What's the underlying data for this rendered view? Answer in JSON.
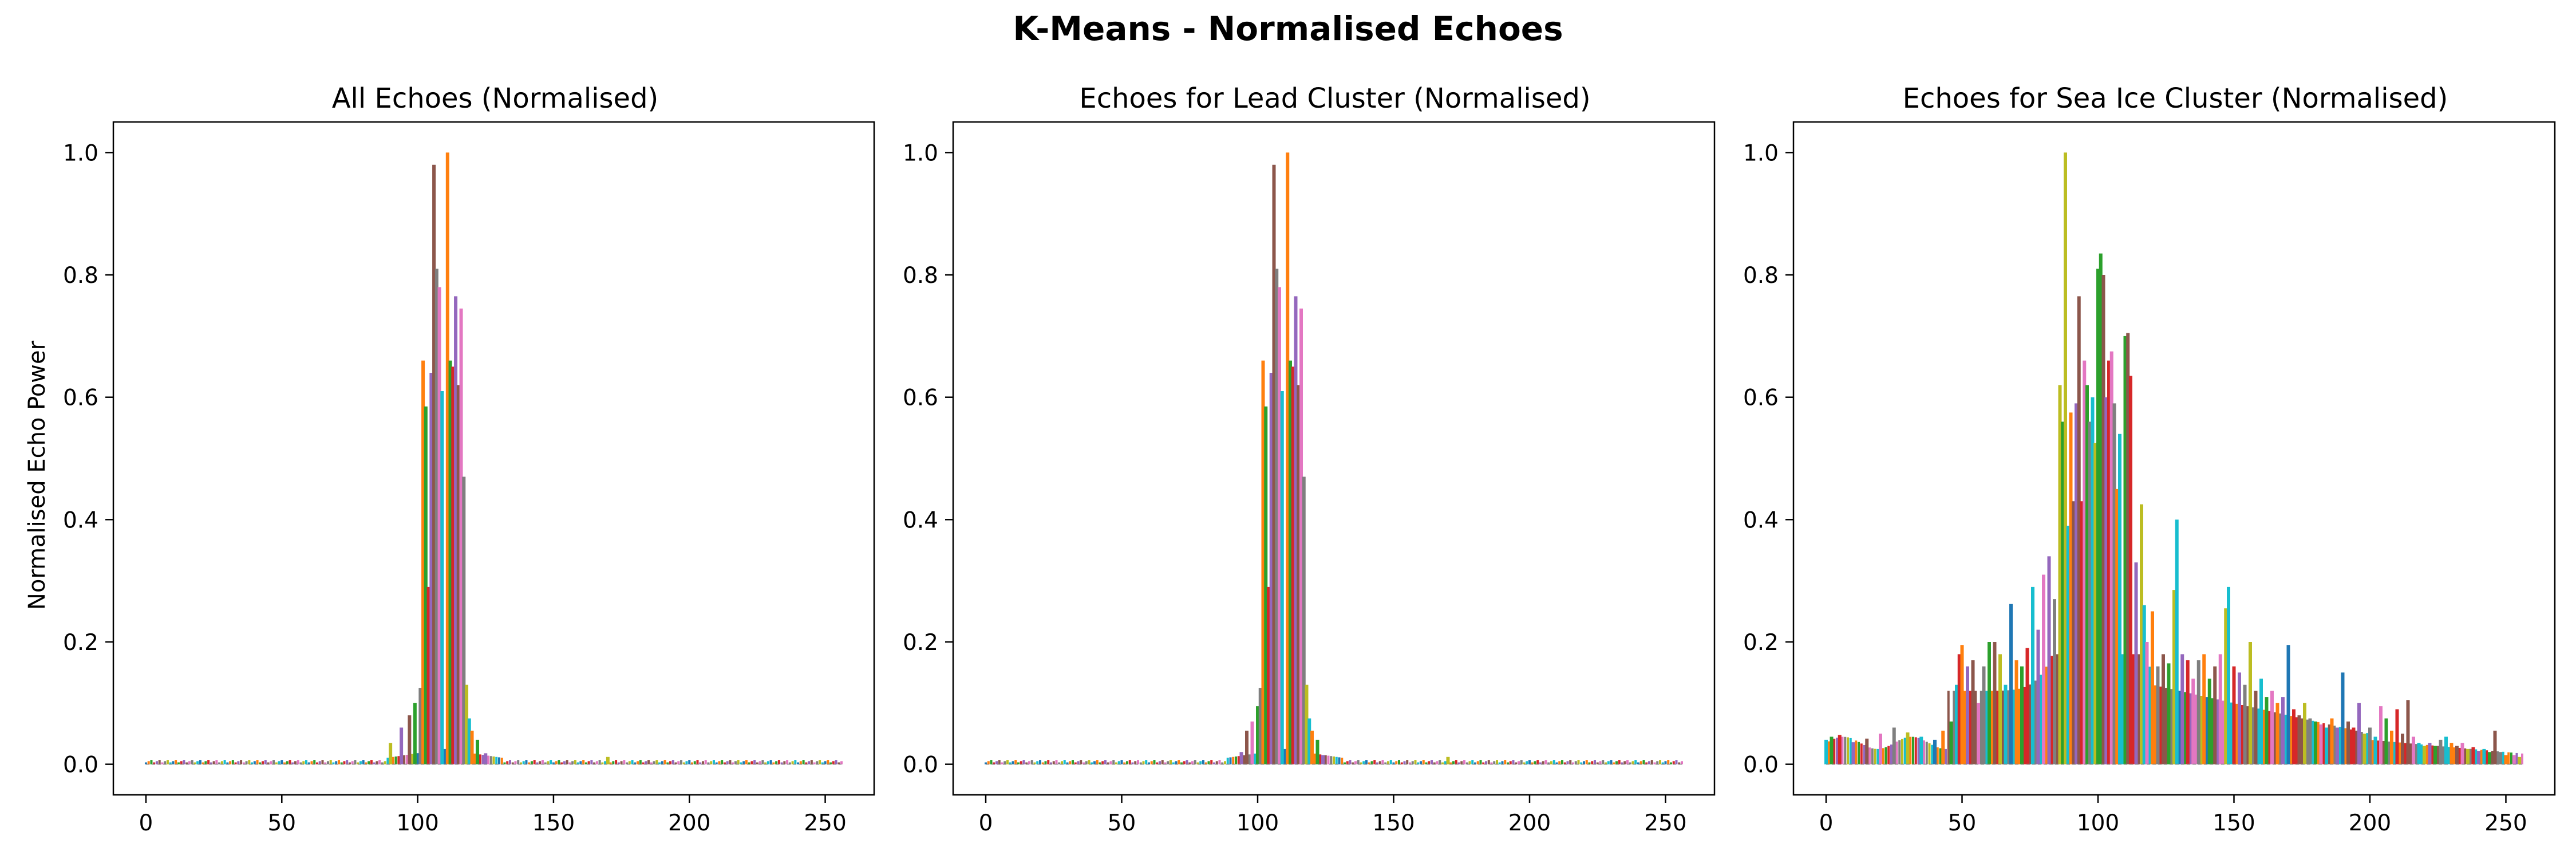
{
  "figure": {
    "title": "K-Means - Normalised Echoes"
  },
  "chart_data": [
    {
      "type": "line",
      "title": "All Echoes (Normalised)",
      "xlabel": "",
      "ylabel": "Normalised Echo Power",
      "xlim": [
        -12,
        268
      ],
      "ylim": [
        -0.05,
        1.05
      ],
      "xticks": [
        0,
        50,
        100,
        150,
        200,
        250
      ],
      "yticks": [
        0.0,
        0.2,
        0.4,
        0.6,
        0.8,
        1.0
      ],
      "grid": false,
      "legend": "none",
      "x_range": [
        0,
        256
      ],
      "bar_peaks": [
        {
          "x": 90,
          "y": 0.035,
          "color": "#bcbd22"
        },
        {
          "x": 94,
          "y": 0.06,
          "color": "#9467bd"
        },
        {
          "x": 97,
          "y": 0.08,
          "color": "#8c564b"
        },
        {
          "x": 99,
          "y": 0.1,
          "color": "#2ca02c"
        },
        {
          "x": 101,
          "y": 0.125,
          "color": "#7f7f7f"
        },
        {
          "x": 102,
          "y": 0.66,
          "color": "#ff7f0e"
        },
        {
          "x": 103,
          "y": 0.585,
          "color": "#2ca02c"
        },
        {
          "x": 104,
          "y": 0.29,
          "color": "#d62728"
        },
        {
          "x": 105,
          "y": 0.64,
          "color": "#9467bd"
        },
        {
          "x": 106,
          "y": 0.98,
          "color": "#8c564b"
        },
        {
          "x": 107,
          "y": 0.81,
          "color": "#7f7f7f"
        },
        {
          "x": 108,
          "y": 0.78,
          "color": "#e377c2"
        },
        {
          "x": 109,
          "y": 0.61,
          "color": "#17becf"
        },
        {
          "x": 111,
          "y": 1.0,
          "color": "#ff7f0e"
        },
        {
          "x": 112,
          "y": 0.66,
          "color": "#2ca02c"
        },
        {
          "x": 113,
          "y": 0.65,
          "color": "#d62728"
        },
        {
          "x": 114,
          "y": 0.765,
          "color": "#9467bd"
        },
        {
          "x": 115,
          "y": 0.62,
          "color": "#8c564b"
        },
        {
          "x": 116,
          "y": 0.745,
          "color": "#e377c2"
        },
        {
          "x": 117,
          "y": 0.47,
          "color": "#7f7f7f"
        },
        {
          "x": 118,
          "y": 0.13,
          "color": "#bcbd22"
        },
        {
          "x": 119,
          "y": 0.075,
          "color": "#17becf"
        },
        {
          "x": 120,
          "y": 0.055,
          "color": "#ff7f0e"
        },
        {
          "x": 122,
          "y": 0.04,
          "color": "#2ca02c"
        },
        {
          "x": 125,
          "y": 0.018,
          "color": "#9467bd"
        },
        {
          "x": 170,
          "y": 0.012,
          "color": "#bcbd22"
        }
      ]
    },
    {
      "type": "line",
      "title": "Echoes for Lead Cluster (Normalised)",
      "xlabel": "",
      "ylabel": "",
      "xlim": [
        -12,
        268
      ],
      "ylim": [
        -0.05,
        1.05
      ],
      "xticks": [
        0,
        50,
        100,
        150,
        200,
        250
      ],
      "yticks": [
        0.0,
        0.2,
        0.4,
        0.6,
        0.8,
        1.0
      ],
      "grid": false,
      "legend": "none",
      "x_range": [
        0,
        256
      ],
      "bar_peaks": [
        {
          "x": 94,
          "y": 0.02,
          "color": "#9467bd"
        },
        {
          "x": 96,
          "y": 0.055,
          "color": "#8c564b"
        },
        {
          "x": 98,
          "y": 0.07,
          "color": "#e377c2"
        },
        {
          "x": 100,
          "y": 0.095,
          "color": "#2ca02c"
        },
        {
          "x": 101,
          "y": 0.125,
          "color": "#7f7f7f"
        },
        {
          "x": 102,
          "y": 0.66,
          "color": "#ff7f0e"
        },
        {
          "x": 103,
          "y": 0.585,
          "color": "#2ca02c"
        },
        {
          "x": 104,
          "y": 0.29,
          "color": "#d62728"
        },
        {
          "x": 105,
          "y": 0.64,
          "color": "#9467bd"
        },
        {
          "x": 106,
          "y": 0.98,
          "color": "#8c564b"
        },
        {
          "x": 107,
          "y": 0.81,
          "color": "#7f7f7f"
        },
        {
          "x": 108,
          "y": 0.78,
          "color": "#e377c2"
        },
        {
          "x": 109,
          "y": 0.61,
          "color": "#17becf"
        },
        {
          "x": 111,
          "y": 1.0,
          "color": "#ff7f0e"
        },
        {
          "x": 112,
          "y": 0.66,
          "color": "#2ca02c"
        },
        {
          "x": 113,
          "y": 0.65,
          "color": "#d62728"
        },
        {
          "x": 114,
          "y": 0.765,
          "color": "#9467bd"
        },
        {
          "x": 115,
          "y": 0.62,
          "color": "#8c564b"
        },
        {
          "x": 116,
          "y": 0.745,
          "color": "#e377c2"
        },
        {
          "x": 117,
          "y": 0.47,
          "color": "#7f7f7f"
        },
        {
          "x": 118,
          "y": 0.13,
          "color": "#bcbd22"
        },
        {
          "x": 119,
          "y": 0.075,
          "color": "#17becf"
        },
        {
          "x": 120,
          "y": 0.055,
          "color": "#ff7f0e"
        },
        {
          "x": 122,
          "y": 0.04,
          "color": "#2ca02c"
        },
        {
          "x": 124,
          "y": 0.015,
          "color": "#9467bd"
        },
        {
          "x": 170,
          "y": 0.012,
          "color": "#bcbd22"
        }
      ]
    },
    {
      "type": "line",
      "title": "Echoes for Sea Ice Cluster (Normalised)",
      "xlabel": "",
      "ylabel": "",
      "xlim": [
        -12,
        268
      ],
      "ylim": [
        -0.05,
        1.05
      ],
      "xticks": [
        0,
        50,
        100,
        150,
        200,
        250
      ],
      "yticks": [
        0.0,
        0.2,
        0.4,
        0.6,
        0.8,
        1.0
      ],
      "grid": false,
      "legend": "none",
      "x_range": [
        0,
        256
      ],
      "bar_peaks": [
        {
          "x": 0,
          "y": 0.04,
          "color": "#17becf"
        },
        {
          "x": 2,
          "y": 0.045,
          "color": "#2ca02c"
        },
        {
          "x": 5,
          "y": 0.048,
          "color": "#d62728"
        },
        {
          "x": 10,
          "y": 0.036,
          "color": "#9467bd"
        },
        {
          "x": 15,
          "y": 0.042,
          "color": "#8c564b"
        },
        {
          "x": 20,
          "y": 0.05,
          "color": "#e377c2"
        },
        {
          "x": 25,
          "y": 0.06,
          "color": "#7f7f7f"
        },
        {
          "x": 30,
          "y": 0.052,
          "color": "#bcbd22"
        },
        {
          "x": 35,
          "y": 0.045,
          "color": "#17becf"
        },
        {
          "x": 40,
          "y": 0.04,
          "color": "#1f77b4"
        },
        {
          "x": 43,
          "y": 0.055,
          "color": "#ff7f0e"
        },
        {
          "x": 46,
          "y": 0.07,
          "color": "#2ca02c"
        },
        {
          "x": 48,
          "y": 0.13,
          "color": "#17becf"
        },
        {
          "x": 49,
          "y": 0.18,
          "color": "#d62728"
        },
        {
          "x": 50,
          "y": 0.195,
          "color": "#ff7f0e"
        },
        {
          "x": 52,
          "y": 0.16,
          "color": "#9467bd"
        },
        {
          "x": 54,
          "y": 0.17,
          "color": "#8c564b"
        },
        {
          "x": 56,
          "y": 0.1,
          "color": "#e377c2"
        },
        {
          "x": 58,
          "y": 0.16,
          "color": "#7f7f7f"
        },
        {
          "x": 60,
          "y": 0.2,
          "color": "#2ca02c"
        },
        {
          "x": 62,
          "y": 0.2,
          "color": "#8c564b"
        },
        {
          "x": 64,
          "y": 0.18,
          "color": "#bcbd22"
        },
        {
          "x": 66,
          "y": 0.13,
          "color": "#17becf"
        },
        {
          "x": 68,
          "y": 0.262,
          "color": "#1f77b4"
        },
        {
          "x": 70,
          "y": 0.17,
          "color": "#ff7f0e"
        },
        {
          "x": 72,
          "y": 0.16,
          "color": "#2ca02c"
        },
        {
          "x": 74,
          "y": 0.19,
          "color": "#d62728"
        },
        {
          "x": 76,
          "y": 0.29,
          "color": "#17becf"
        },
        {
          "x": 78,
          "y": 0.22,
          "color": "#9467bd"
        },
        {
          "x": 80,
          "y": 0.31,
          "color": "#e377c2"
        },
        {
          "x": 82,
          "y": 0.34,
          "color": "#9467bd"
        },
        {
          "x": 84,
          "y": 0.27,
          "color": "#7f7f7f"
        },
        {
          "x": 86,
          "y": 0.62,
          "color": "#bcbd22"
        },
        {
          "x": 87,
          "y": 0.56,
          "color": "#2ca02c"
        },
        {
          "x": 88,
          "y": 1.0,
          "color": "#bcbd22"
        },
        {
          "x": 89,
          "y": 0.39,
          "color": "#17becf"
        },
        {
          "x": 90,
          "y": 0.575,
          "color": "#ff7f0e"
        },
        {
          "x": 91,
          "y": 0.43,
          "color": "#8c564b"
        },
        {
          "x": 92,
          "y": 0.59,
          "color": "#9467bd"
        },
        {
          "x": 93,
          "y": 0.765,
          "color": "#8c564b"
        },
        {
          "x": 94,
          "y": 0.43,
          "color": "#d62728"
        },
        {
          "x": 95,
          "y": 0.66,
          "color": "#e377c2"
        },
        {
          "x": 96,
          "y": 0.62,
          "color": "#2ca02c"
        },
        {
          "x": 97,
          "y": 0.56,
          "color": "#7f7f7f"
        },
        {
          "x": 98,
          "y": 0.6,
          "color": "#17becf"
        },
        {
          "x": 99,
          "y": 0.525,
          "color": "#bcbd22"
        },
        {
          "x": 100,
          "y": 0.81,
          "color": "#2ca02c"
        },
        {
          "x": 101,
          "y": 0.835,
          "color": "#2ca02c"
        },
        {
          "x": 102,
          "y": 0.8,
          "color": "#8c564b"
        },
        {
          "x": 103,
          "y": 0.6,
          "color": "#9467bd"
        },
        {
          "x": 104,
          "y": 0.66,
          "color": "#d62728"
        },
        {
          "x": 105,
          "y": 0.675,
          "color": "#e377c2"
        },
        {
          "x": 106,
          "y": 0.59,
          "color": "#7f7f7f"
        },
        {
          "x": 107,
          "y": 0.45,
          "color": "#ff7f0e"
        },
        {
          "x": 108,
          "y": 0.54,
          "color": "#17becf"
        },
        {
          "x": 110,
          "y": 0.7,
          "color": "#2ca02c"
        },
        {
          "x": 111,
          "y": 0.705,
          "color": "#8c564b"
        },
        {
          "x": 112,
          "y": 0.635,
          "color": "#d62728"
        },
        {
          "x": 114,
          "y": 0.33,
          "color": "#9467bd"
        },
        {
          "x": 116,
          "y": 0.425,
          "color": "#bcbd22"
        },
        {
          "x": 117,
          "y": 0.26,
          "color": "#17becf"
        },
        {
          "x": 118,
          "y": 0.2,
          "color": "#e377c2"
        },
        {
          "x": 120,
          "y": 0.25,
          "color": "#ff7f0e"
        },
        {
          "x": 122,
          "y": 0.16,
          "color": "#7f7f7f"
        },
        {
          "x": 124,
          "y": 0.18,
          "color": "#8c564b"
        },
        {
          "x": 126,
          "y": 0.165,
          "color": "#2ca02c"
        },
        {
          "x": 128,
          "y": 0.285,
          "color": "#bcbd22"
        },
        {
          "x": 129,
          "y": 0.4,
          "color": "#17becf"
        },
        {
          "x": 131,
          "y": 0.18,
          "color": "#9467bd"
        },
        {
          "x": 133,
          "y": 0.17,
          "color": "#d62728"
        },
        {
          "x": 135,
          "y": 0.14,
          "color": "#e377c2"
        },
        {
          "x": 137,
          "y": 0.17,
          "color": "#7f7f7f"
        },
        {
          "x": 139,
          "y": 0.18,
          "color": "#ff7f0e"
        },
        {
          "x": 141,
          "y": 0.14,
          "color": "#2ca02c"
        },
        {
          "x": 143,
          "y": 0.16,
          "color": "#8c564b"
        },
        {
          "x": 145,
          "y": 0.18,
          "color": "#e377c2"
        },
        {
          "x": 147,
          "y": 0.255,
          "color": "#bcbd22"
        },
        {
          "x": 148,
          "y": 0.29,
          "color": "#17becf"
        },
        {
          "x": 150,
          "y": 0.16,
          "color": "#d62728"
        },
        {
          "x": 152,
          "y": 0.15,
          "color": "#9467bd"
        },
        {
          "x": 154,
          "y": 0.13,
          "color": "#7f7f7f"
        },
        {
          "x": 156,
          "y": 0.2,
          "color": "#bcbd22"
        },
        {
          "x": 158,
          "y": 0.12,
          "color": "#8c564b"
        },
        {
          "x": 160,
          "y": 0.14,
          "color": "#17becf"
        },
        {
          "x": 162,
          "y": 0.11,
          "color": "#2ca02c"
        },
        {
          "x": 164,
          "y": 0.12,
          "color": "#e377c2"
        },
        {
          "x": 166,
          "y": 0.1,
          "color": "#ff7f0e"
        },
        {
          "x": 168,
          "y": 0.11,
          "color": "#9467bd"
        },
        {
          "x": 170,
          "y": 0.195,
          "color": "#1f77b4"
        },
        {
          "x": 172,
          "y": 0.09,
          "color": "#d62728"
        },
        {
          "x": 174,
          "y": 0.08,
          "color": "#8c564b"
        },
        {
          "x": 176,
          "y": 0.1,
          "color": "#bcbd22"
        },
        {
          "x": 178,
          "y": 0.075,
          "color": "#7f7f7f"
        },
        {
          "x": 180,
          "y": 0.07,
          "color": "#2ca02c"
        },
        {
          "x": 182,
          "y": 0.065,
          "color": "#e377c2"
        },
        {
          "x": 184,
          "y": 0.06,
          "color": "#17becf"
        },
        {
          "x": 186,
          "y": 0.075,
          "color": "#ff7f0e"
        },
        {
          "x": 188,
          "y": 0.06,
          "color": "#9467bd"
        },
        {
          "x": 190,
          "y": 0.15,
          "color": "#1f77b4"
        },
        {
          "x": 192,
          "y": 0.07,
          "color": "#8c564b"
        },
        {
          "x": 194,
          "y": 0.06,
          "color": "#d62728"
        },
        {
          "x": 196,
          "y": 0.1,
          "color": "#9467bd"
        },
        {
          "x": 198,
          "y": 0.05,
          "color": "#bcbd22"
        },
        {
          "x": 200,
          "y": 0.06,
          "color": "#7f7f7f"
        },
        {
          "x": 202,
          "y": 0.045,
          "color": "#17becf"
        },
        {
          "x": 204,
          "y": 0.095,
          "color": "#e377c2"
        },
        {
          "x": 206,
          "y": 0.075,
          "color": "#2ca02c"
        },
        {
          "x": 208,
          "y": 0.055,
          "color": "#ff7f0e"
        },
        {
          "x": 210,
          "y": 0.09,
          "color": "#d62728"
        },
        {
          "x": 212,
          "y": 0.05,
          "color": "#8c564b"
        },
        {
          "x": 214,
          "y": 0.105,
          "color": "#8c564b"
        },
        {
          "x": 216,
          "y": 0.045,
          "color": "#e377c2"
        },
        {
          "x": 218,
          "y": 0.035,
          "color": "#17becf"
        },
        {
          "x": 220,
          "y": 0.03,
          "color": "#bcbd22"
        },
        {
          "x": 222,
          "y": 0.035,
          "color": "#9467bd"
        },
        {
          "x": 224,
          "y": 0.03,
          "color": "#2ca02c"
        },
        {
          "x": 226,
          "y": 0.04,
          "color": "#7f7f7f"
        },
        {
          "x": 228,
          "y": 0.045,
          "color": "#17becf"
        },
        {
          "x": 230,
          "y": 0.035,
          "color": "#ff7f0e"
        },
        {
          "x": 232,
          "y": 0.03,
          "color": "#8c564b"
        },
        {
          "x": 234,
          "y": 0.035,
          "color": "#e377c2"
        },
        {
          "x": 236,
          "y": 0.025,
          "color": "#bcbd22"
        },
        {
          "x": 238,
          "y": 0.028,
          "color": "#d62728"
        },
        {
          "x": 240,
          "y": 0.022,
          "color": "#9467bd"
        },
        {
          "x": 242,
          "y": 0.025,
          "color": "#17becf"
        },
        {
          "x": 244,
          "y": 0.02,
          "color": "#2ca02c"
        },
        {
          "x": 246,
          "y": 0.055,
          "color": "#8c564b"
        },
        {
          "x": 248,
          "y": 0.02,
          "color": "#7f7f7f"
        },
        {
          "x": 250,
          "y": 0.015,
          "color": "#ff7f0e"
        },
        {
          "x": 253,
          "y": 0.015,
          "color": "#e377c2"
        },
        {
          "x": 255,
          "y": 0.012,
          "color": "#bcbd22"
        }
      ]
    }
  ]
}
